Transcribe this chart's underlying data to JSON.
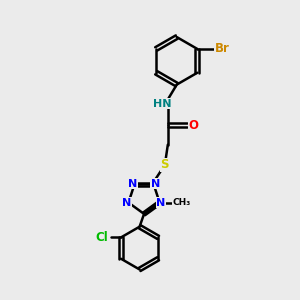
{
  "bg_color": "#ebebeb",
  "bond_color": "#000000",
  "bond_width": 1.8,
  "atom_colors": {
    "C": "#000000",
    "N": "#0000ff",
    "O": "#ff0000",
    "S": "#cccc00",
    "Br": "#cc8800",
    "Cl": "#00bb00",
    "H": "#008080"
  },
  "font_size": 8.5,
  "xlim": [
    0,
    10
  ],
  "ylim": [
    0,
    10
  ]
}
